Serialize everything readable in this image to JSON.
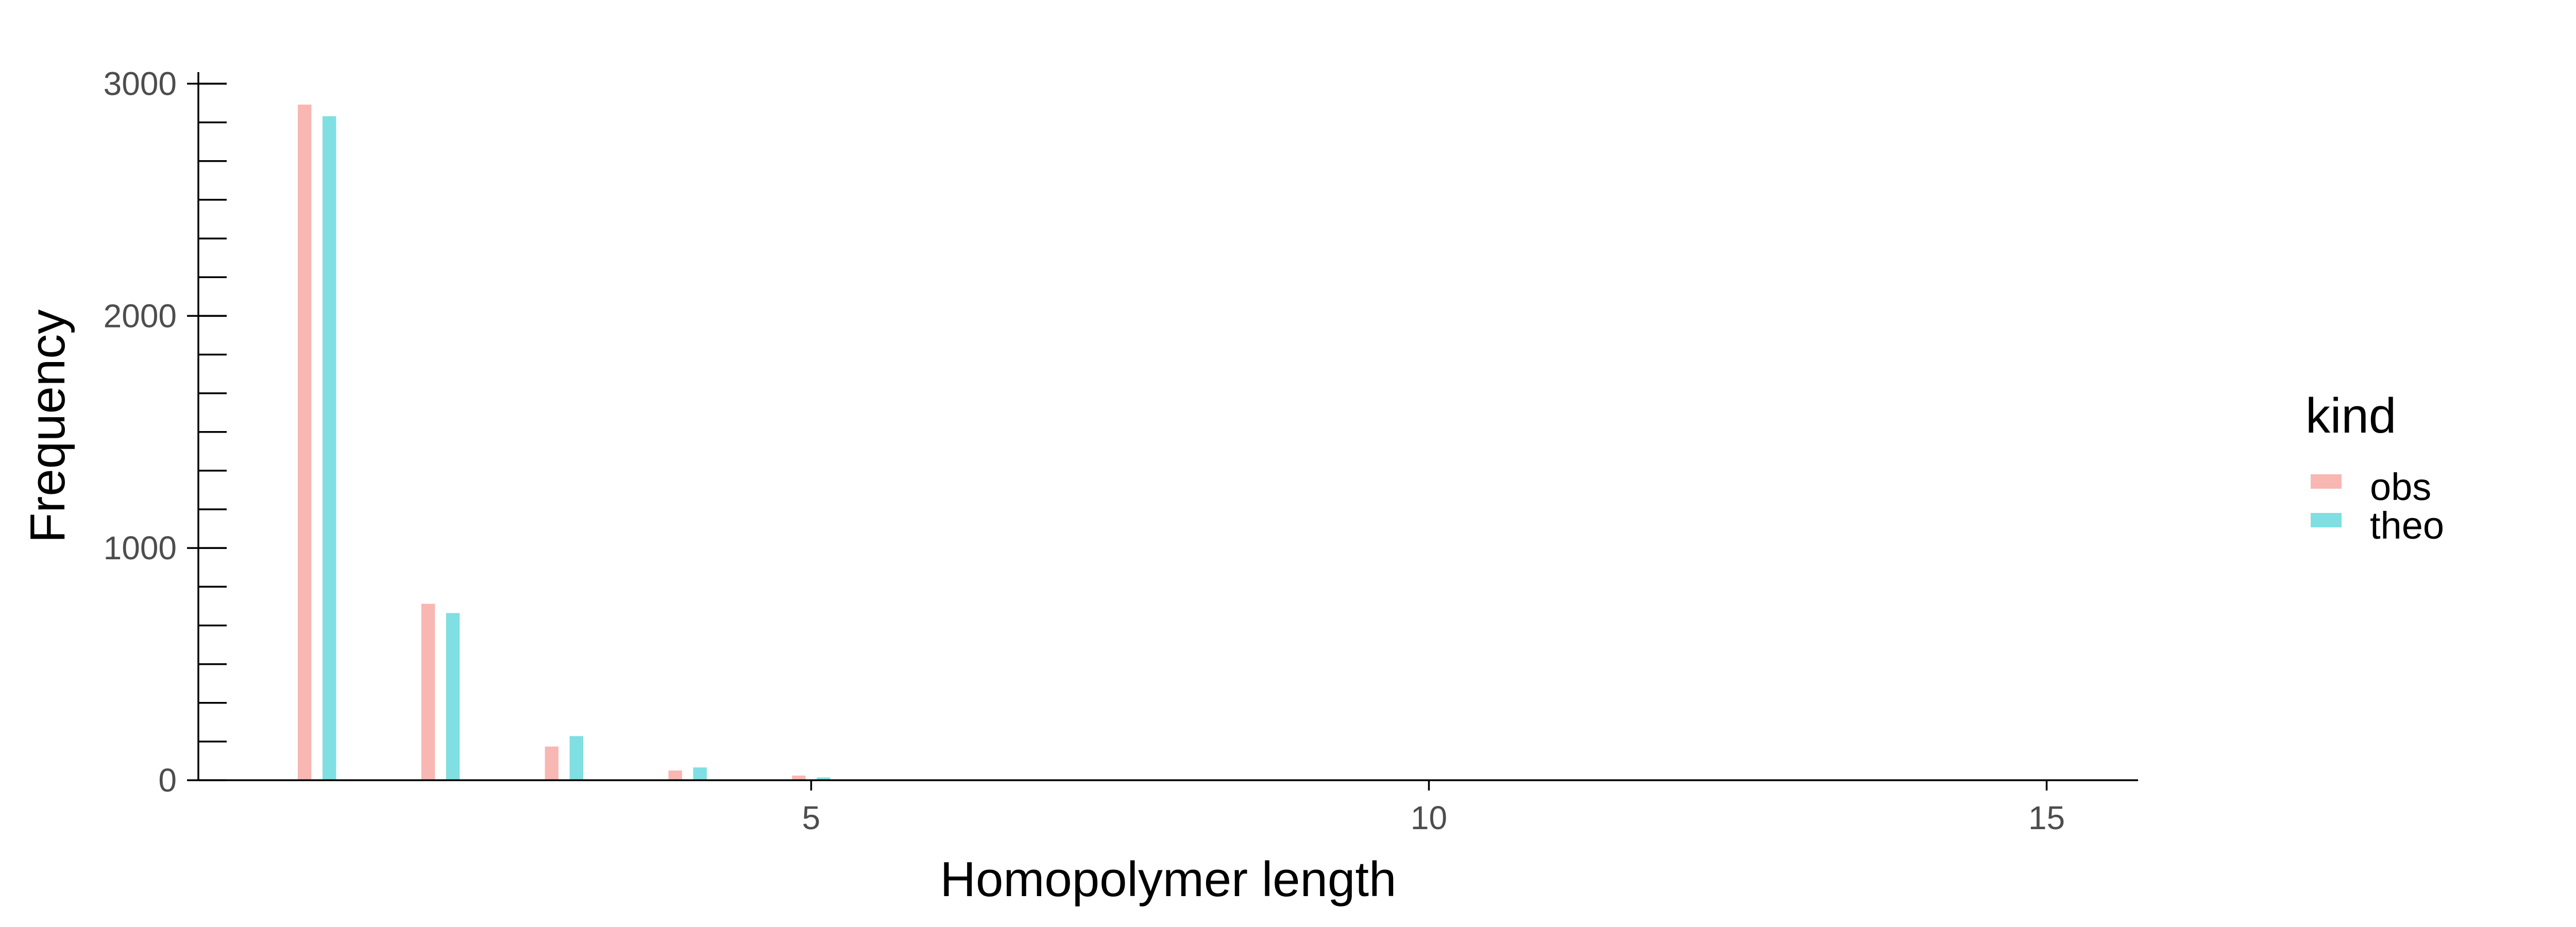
{
  "chart_data": {
    "type": "bar",
    "xlabel": "Homopolymer length",
    "ylabel": "Frequency",
    "xlim": [
      0.04,
      15.74
    ],
    "ylim": [
      0,
      3050
    ],
    "x_ticks": [
      "5",
      "10",
      "15"
    ],
    "y_ticks": [
      "0",
      "1000",
      "2000",
      "3000"
    ],
    "y_minor_step": 166.67,
    "grid": false,
    "legend": {
      "title": "kind",
      "position": "right"
    },
    "series": [
      {
        "name": "obs",
        "color": "#f8b7b2",
        "x": [
          1,
          2,
          3,
          4,
          5
        ],
        "values": [
          2910,
          760,
          145,
          42,
          20
        ]
      },
      {
        "name": "theo",
        "color": "#7fdfe2",
        "x": [
          1,
          2,
          3,
          4,
          5
        ],
        "values": [
          2860,
          720,
          190,
          55,
          12
        ]
      }
    ]
  }
}
